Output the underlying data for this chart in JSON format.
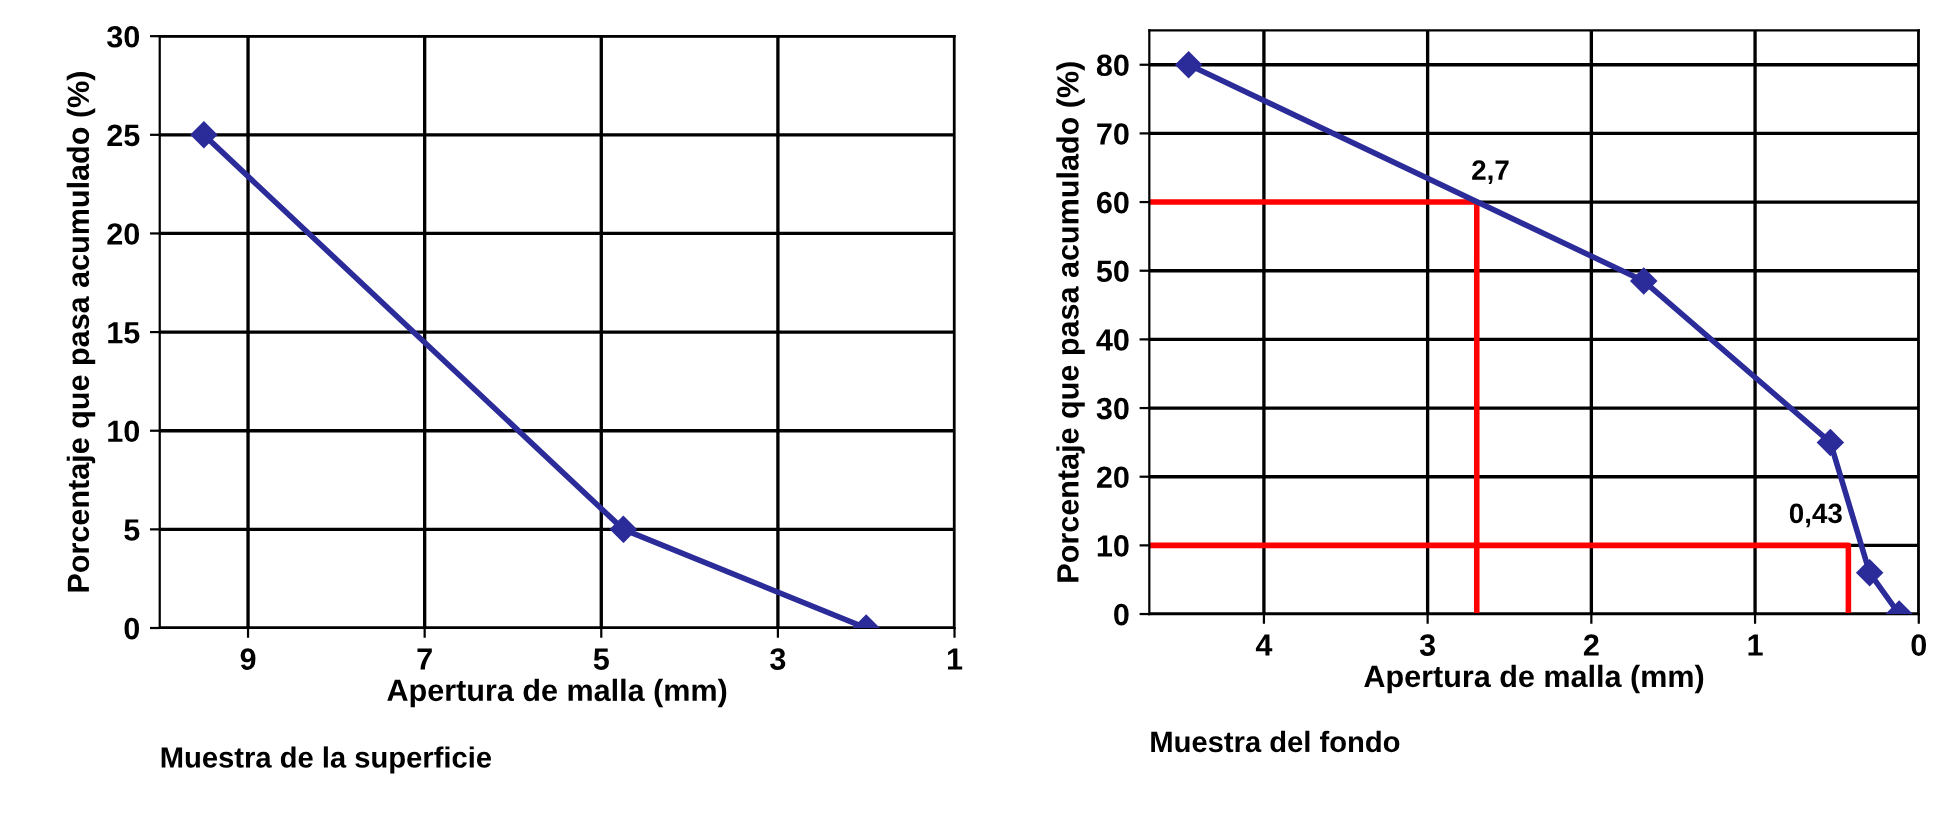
{
  "chart_data": [
    {
      "type": "line",
      "xlabel": "Apertura de malla (mm)",
      "ylabel": "Porcentaje que pasa acumulado (%)",
      "x": [
        9.5,
        4.75,
        2.0
      ],
      "series": [
        {
          "color": "#2b2b9a",
          "values": [
            25,
            5,
            0
          ]
        }
      ],
      "xlim": [
        10,
        1
      ],
      "xticks": [
        9,
        7,
        5,
        3,
        1
      ],
      "ylim": [
        0,
        30
      ],
      "yticks": [
        0,
        5,
        10,
        15,
        20,
        25,
        30
      ],
      "grid": true,
      "marker": "diamond",
      "line_style": "solid",
      "annotations": [
        "Muestra de la superficie"
      ]
    },
    {
      "type": "line",
      "xlabel": "Apertura de malla (mm)",
      "ylabel": "Porcentaje que pasa acumulado (%)",
      "series": [
        {
          "color": "#2b2b9a",
          "x": [
            4.46,
            1.68,
            0.54,
            0.3,
            0.12
          ],
          "values": [
            80,
            48.5,
            25,
            6,
            0
          ]
        },
        {
          "color": "#ff0000",
          "x": [
            4.7,
            2.7,
            2.7
          ],
          "values": [
            60,
            60,
            0
          ],
          "marker": "none"
        },
        {
          "color": "#ff0000",
          "x": [
            4.7,
            0.43,
            0.43
          ],
          "values": [
            10,
            10,
            0
          ],
          "marker": "none"
        }
      ],
      "xlim": [
        4.7,
        0
      ],
      "xticks": [
        4,
        3,
        2,
        1,
        0
      ],
      "ylim": [
        0,
        85
      ],
      "yticks": [
        0,
        10,
        20,
        30,
        40,
        50,
        60,
        70,
        80
      ],
      "grid": true,
      "marker": "diamond",
      "line_style": "solid",
      "annotations": [
        {
          "text": "2,7",
          "x": 2.7,
          "y": 60
        },
        {
          "text": "0,43",
          "x": 0.43,
          "y": 10
        },
        "Muestra del fondo"
      ]
    }
  ]
}
